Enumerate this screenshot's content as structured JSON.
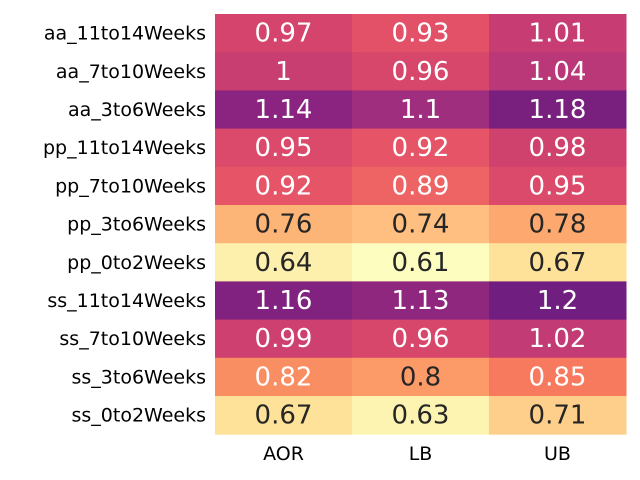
{
  "chart_data": {
    "type": "heatmap",
    "title": "",
    "xlabel": "",
    "ylabel": "",
    "colormap": "magma_r",
    "colorbar": false,
    "columns": [
      "AOR",
      "LB",
      "UB"
    ],
    "rows": [
      "aa_11to14Weeks",
      "aa_7to10Weeks",
      "aa_3to6Weeks",
      "pp_11to14Weeks",
      "pp_7to10Weeks",
      "pp_3to6Weeks",
      "pp_0to2Weeks",
      "ss_11to14Weeks",
      "ss_7to10Weeks",
      "ss_3to6Weeks",
      "ss_0to2Weeks"
    ],
    "values": [
      [
        0.97,
        0.93,
        1.01
      ],
      [
        1,
        0.96,
        1.04
      ],
      [
        1.14,
        1.1,
        1.18
      ],
      [
        0.95,
        0.92,
        0.98
      ],
      [
        0.92,
        0.89,
        0.95
      ],
      [
        0.76,
        0.74,
        0.78
      ],
      [
        0.64,
        0.61,
        0.67
      ],
      [
        1.16,
        1.13,
        1.2
      ],
      [
        0.99,
        0.96,
        1.02
      ],
      [
        0.82,
        0.8,
        0.85
      ],
      [
        0.67,
        0.63,
        0.71
      ]
    ],
    "vmin": 0.61,
    "vmax": 1.2,
    "text_colors": {
      "light": "#ffffff",
      "dark": "#262626"
    }
  }
}
